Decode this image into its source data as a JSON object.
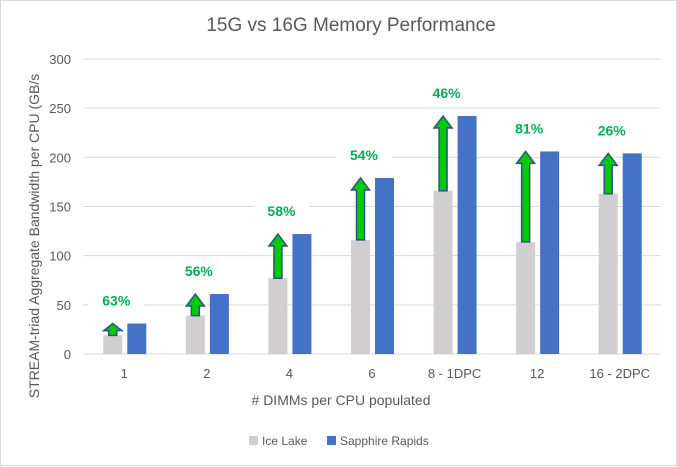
{
  "chart_data": {
    "type": "bar",
    "title": "15G vs 16G Memory Performance",
    "xlabel": "# DIMMs per CPU populated",
    "ylabel": "STREAM-triad Aggregate Bandwidth per CPU (GB/s",
    "ylim": [
      0,
      300
    ],
    "yticks": [
      "0",
      "50",
      "100",
      "150",
      "200",
      "250",
      "300"
    ],
    "grid": true,
    "legend_position": "bottom",
    "categories": [
      "1",
      "2",
      "4",
      "6",
      "8 - 1DPC",
      "12",
      "16 - 2DPC"
    ],
    "series": [
      {
        "name": "Ice Lake",
        "color": "#d0cece",
        "values": [
          19,
          39,
          77,
          116,
          166,
          114,
          163
        ]
      },
      {
        "name": "Sapphire Rapids",
        "color": "#4472c4",
        "values": [
          31,
          61,
          122,
          179,
          242,
          206,
          204
        ]
      }
    ],
    "annotations": [
      "63%",
      "56%",
      "58%",
      "54%",
      "46%",
      "81%",
      "26%"
    ],
    "annotation_color": "#00b050",
    "arrow_color": "#00cc00"
  }
}
